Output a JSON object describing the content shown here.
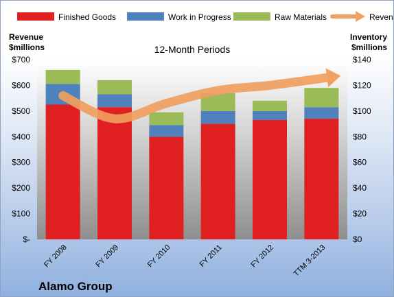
{
  "chart_data": {
    "type": "bar",
    "title": "12-Month Periods",
    "footer": "Alamo Group",
    "left_axis_label": [
      "Revenue",
      "$millions"
    ],
    "right_axis_label": [
      "Inventory",
      "$millions"
    ],
    "categories": [
      "FY 2008",
      "FY 2009",
      "FY 2010",
      "FY 2011",
      "FY 2012",
      "TTM 3-2013"
    ],
    "series": [
      {
        "name": "Finished Goods",
        "color": "#e02020",
        "values": [
          105,
          103,
          80,
          90,
          93,
          94
        ]
      },
      {
        "name": "Work in Progress",
        "color": "#4f81bd",
        "values": [
          16,
          10,
          9,
          10,
          7,
          9
        ]
      },
      {
        "name": "Raw Materials",
        "color": "#9bbb59",
        "values": [
          11,
          11,
          10,
          14,
          8,
          15
        ]
      }
    ],
    "line_series": {
      "name": "Revenue",
      "color": "#f0a060",
      "values": [
        560,
        470,
        530,
        580,
        600,
        630
      ]
    },
    "left_axis": {
      "min": 0,
      "max": 700,
      "step": 100,
      "tick_labels": [
        "$-",
        "$100",
        "$200",
        "$300",
        "$400",
        "$500",
        "$600",
        "$700"
      ]
    },
    "right_axis": {
      "min": 0,
      "max": 140,
      "step": 20,
      "tick_labels": [
        "$0",
        "$20",
        "$40",
        "$60",
        "$80",
        "$100",
        "$120",
        "$140"
      ]
    },
    "legend_position": "top",
    "grid": false
  }
}
